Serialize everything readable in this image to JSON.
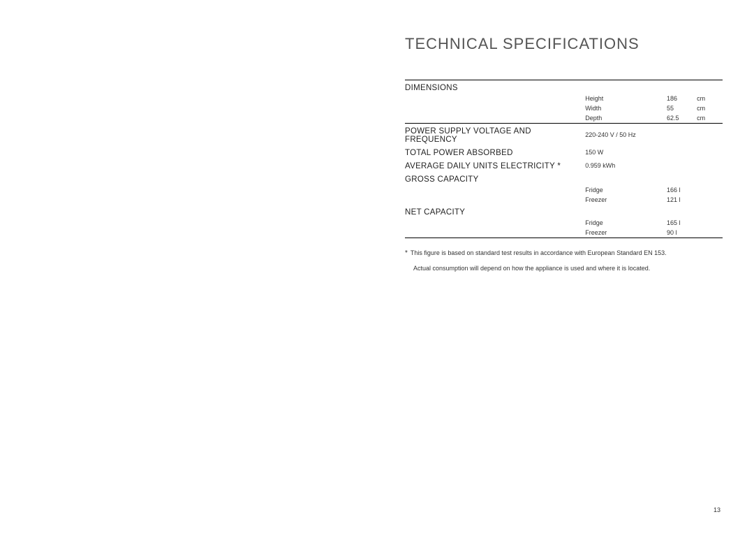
{
  "title": "TECHNICAL SPECIFICATIONS",
  "colors": {
    "background": "#ffffff",
    "text": "#333333",
    "title": "#555555",
    "rule": "#000000"
  },
  "typography": {
    "title_fontsize": 22,
    "section_fontsize": 11.5,
    "body_fontsize": 9,
    "font_family": "Arial"
  },
  "sections": {
    "dimensions": {
      "label": "DIMENSIONS",
      "rows": [
        {
          "sub": "Height",
          "value": "186",
          "unit": "cm"
        },
        {
          "sub": "Width",
          "value": "55",
          "unit": "cm"
        },
        {
          "sub": "Depth",
          "value": "62.5",
          "unit": "cm"
        }
      ]
    },
    "power_supply": {
      "label": "POWER SUPPLY VOLTAGE AND FREQUENCY",
      "value": "220-240 V / 50 Hz"
    },
    "total_power": {
      "label": "TOTAL POWER ABSORBED",
      "value": "150 W"
    },
    "avg_daily": {
      "label": "AVERAGE DAILY UNITS ELECTRICITY *",
      "value": "0.959  kWh"
    },
    "gross_capacity": {
      "label": "GROSS CAPACITY",
      "rows": [
        {
          "sub": "Fridge",
          "value": "166 l"
        },
        {
          "sub": "Freezer",
          "value": "121 l"
        }
      ]
    },
    "net_capacity": {
      "label": "NET CAPACITY",
      "rows": [
        {
          "sub": "Fridge",
          "value": "165 l"
        },
        {
          "sub": "Freezer",
          "value": "90 l"
        }
      ]
    }
  },
  "footnote": {
    "star": "*",
    "line1": "This figure is based on standard test results in accordance with European Standard EN 153.",
    "line2": "Actual consumption will depend on how the appliance is used and where it is located."
  },
  "page_number": "13"
}
